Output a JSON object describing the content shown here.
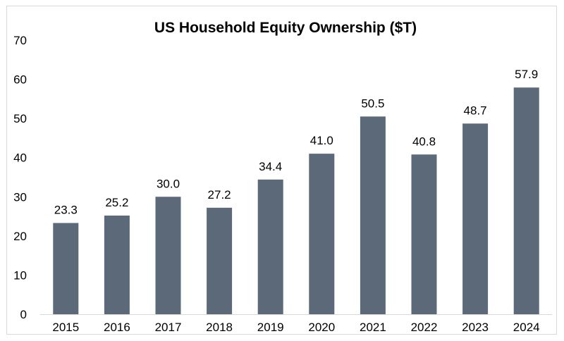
{
  "chart_data": {
    "type": "bar",
    "title": "US Household Equity Ownership ($T)",
    "xlabel": "",
    "ylabel": "",
    "categories": [
      "2015",
      "2016",
      "2017",
      "2018",
      "2019",
      "2020",
      "2021",
      "2022",
      "2023",
      "2024"
    ],
    "values": [
      23.3,
      25.2,
      30.0,
      27.2,
      34.4,
      41.0,
      50.5,
      40.8,
      48.7,
      57.9
    ],
    "value_labels": [
      "23.3",
      "25.2",
      "30.0",
      "27.2",
      "34.4",
      "41.0",
      "50.5",
      "40.8",
      "48.7",
      "57.9"
    ],
    "ylim": [
      0,
      70
    ],
    "yticks": [
      0,
      10,
      20,
      30,
      40,
      50,
      60,
      70
    ],
    "grid": false,
    "legend": "none",
    "bar_color": "#5b6978"
  }
}
